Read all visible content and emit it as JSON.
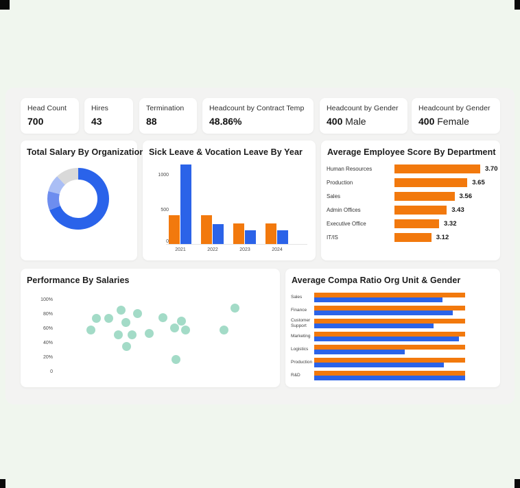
{
  "colors": {
    "orange": "#f2790d",
    "blue": "#2b63e8",
    "mint": "#a3dbc7",
    "donut_main": "#2a63ea",
    "donut_mid": "#6d8def",
    "donut_light": "#aabef5",
    "donut_gray": "#d9d9d9",
    "page_bg": "#f0f6ee",
    "panel_bg": "#f3f3f2"
  },
  "kpis": [
    {
      "label": "Head Count",
      "value": "700",
      "suffix": ""
    },
    {
      "label": "Hires",
      "value": "43",
      "suffix": ""
    },
    {
      "label": "Termination",
      "value": "88",
      "suffix": ""
    },
    {
      "label": "Headcount by Contract Temp",
      "value": "48.86%",
      "suffix": ""
    },
    {
      "label": "Headcount by Gender",
      "value": "400",
      "suffix": " Male"
    },
    {
      "label": "Headcount by Gender",
      "value": "400",
      "suffix": " Female"
    }
  ],
  "chart_data": [
    {
      "type": "pie",
      "title": "Total Salary By Organization",
      "values": [
        69,
        10,
        9,
        12
      ],
      "colors": [
        "#2a63ea",
        "#6d8def",
        "#aabef5",
        "#d9d9d9"
      ],
      "legend": "none"
    },
    {
      "type": "bar",
      "title": "Sick Leave & Vocation Leave By Year",
      "categories": [
        "2021",
        "2022",
        "2023",
        "2024"
      ],
      "series": [
        {
          "name": "Sick Leave",
          "color": "#f2790d",
          "values": [
            420,
            420,
            300,
            300
          ]
        },
        {
          "name": "Vocation Leave",
          "color": "#2b63e8",
          "values": [
            1170,
            290,
            205,
            205
          ]
        }
      ],
      "yticks": [
        0,
        500,
        1000
      ],
      "ylim": [
        0,
        1200
      ],
      "grid": false,
      "legend": "none"
    },
    {
      "type": "bar",
      "orientation": "horizontal",
      "title": "Average Employee Score By Department",
      "categories": [
        "Human Resources",
        "Production",
        "Sales",
        "Admin Offices",
        "Executive Office",
        "IT/IS"
      ],
      "values": [
        3.7,
        3.65,
        3.56,
        3.43,
        3.32,
        3.12
      ],
      "value_labels": [
        "3.70",
        "3.65",
        "3.56",
        "3.43",
        "3.32",
        "3.12"
      ],
      "bar_pct_of_max": [
        100,
        85,
        70,
        61,
        52,
        43
      ],
      "color": "#f2790d",
      "legend": "none"
    },
    {
      "type": "scatter",
      "title": "Performance By Salaries",
      "ytick_labels": [
        "100%",
        "80%",
        "60%",
        "40%",
        "20%",
        "0"
      ],
      "ylim_pct": [
        0,
        100
      ],
      "point_color": "#a3dbc7",
      "points": [
        {
          "x": 16.3,
          "y": 59
        },
        {
          "x": 18.8,
          "y": 75
        },
        {
          "x": 24.4,
          "y": 75
        },
        {
          "x": 28.8,
          "y": 52
        },
        {
          "x": 30.0,
          "y": 86
        },
        {
          "x": 32.2,
          "y": 69
        },
        {
          "x": 32.5,
          "y": 36
        },
        {
          "x": 35.0,
          "y": 52
        },
        {
          "x": 37.8,
          "y": 81
        },
        {
          "x": 43.1,
          "y": 54
        },
        {
          "x": 49.1,
          "y": 76
        },
        {
          "x": 54.4,
          "y": 61
        },
        {
          "x": 55.3,
          "y": 18
        },
        {
          "x": 57.5,
          "y": 71
        },
        {
          "x": 59.4,
          "y": 59
        },
        {
          "x": 76.9,
          "y": 59
        },
        {
          "x": 81.9,
          "y": 89
        }
      ],
      "legend": "none"
    },
    {
      "type": "bar",
      "orientation": "horizontal",
      "title": "Average Compa Ratio Org Unit & Gender",
      "categories": [
        "Sales",
        "Finance",
        "Customer Support",
        "Marketing",
        "Logistics",
        "Production",
        "R&D"
      ],
      "series": [
        {
          "name": "orange",
          "color": "#f2790d",
          "pct_of_max": [
            100,
            100,
            100,
            100,
            100,
            100,
            100
          ]
        },
        {
          "name": "blue",
          "color": "#2b63e8",
          "pct_of_max": [
            85,
            92,
            79,
            96,
            60,
            86,
            100
          ]
        }
      ],
      "legend": "none"
    }
  ]
}
